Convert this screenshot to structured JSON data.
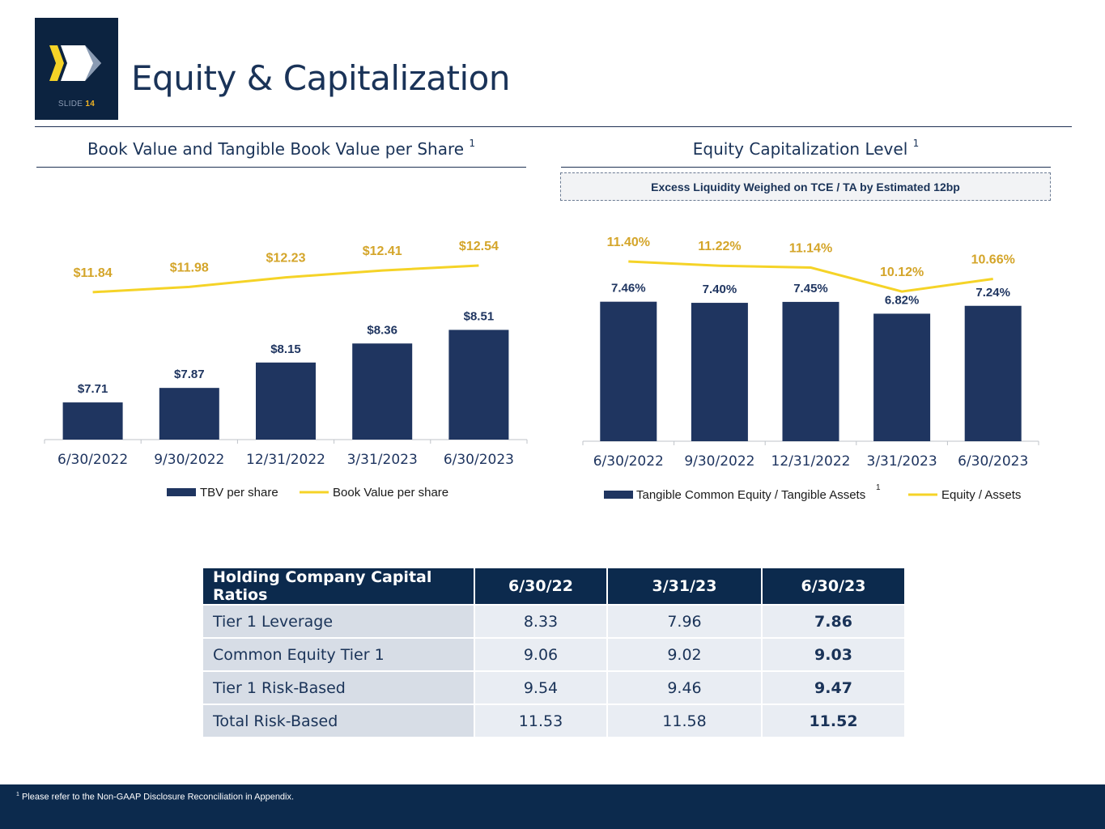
{
  "slide": {
    "label": "SLIDE",
    "number": "14",
    "title": "Equity & Capitalization"
  },
  "colors": {
    "navy": "#1f3560",
    "gold_line": "#f5d327",
    "gold_label": "#d4a52a",
    "dark": "#0c2a4d"
  },
  "left_chart": {
    "section_title": "Book Value and Tangible Book Value per Share",
    "superscript": "1",
    "chart_data": {
      "type": "bar+line",
      "categories": [
        "6/30/2022",
        "9/30/2022",
        "12/31/2022",
        "3/31/2023",
        "6/30/2023"
      ],
      "series": [
        {
          "name": "TBV per share",
          "kind": "bar",
          "values": [
            7.71,
            7.87,
            8.15,
            8.36,
            8.51
          ],
          "labels": [
            "$7.71",
            "$7.87",
            "$8.15",
            "$8.36",
            "$8.51"
          ]
        },
        {
          "name": "Book Value per share",
          "kind": "line",
          "values": [
            11.84,
            11.98,
            12.23,
            12.41,
            12.54
          ],
          "labels": [
            "$11.84",
            "$11.98",
            "$12.23",
            "$12.41",
            "$12.54"
          ]
        }
      ],
      "legend": [
        "TBV per share",
        "Book Value per share"
      ]
    }
  },
  "right_chart": {
    "section_title": "Equity Capitalization Level",
    "superscript": "1",
    "callout": "Excess Liquidity Weighed on TCE / TA by Estimated 12bp",
    "chart_data": {
      "type": "bar+line",
      "categories": [
        "6/30/2022",
        "9/30/2022",
        "12/31/2022",
        "3/31/2023",
        "6/30/2023"
      ],
      "series": [
        {
          "name": "Tangible Common Equity / Tangible Assets",
          "kind": "bar",
          "values": [
            7.46,
            7.4,
            7.45,
            6.82,
            7.24
          ],
          "labels": [
            "7.46%",
            "7.40%",
            "7.45%",
            "6.82%",
            "7.24%"
          ]
        },
        {
          "name": "Equity / Assets",
          "kind": "line",
          "values": [
            11.4,
            11.22,
            11.14,
            10.12,
            10.66
          ],
          "labels": [
            "11.40%",
            "11.22%",
            "11.14%",
            "10.12%",
            "10.66%"
          ]
        }
      ],
      "legend": [
        "Tangible Common Equity / Tangible Assets",
        "Equity / Assets"
      ],
      "legend_superscript": "1"
    }
  },
  "table": {
    "headers": [
      "Holding Company Capital Ratios",
      "6/30/22",
      "3/31/23",
      "6/30/23"
    ],
    "rows": [
      [
        "Tier 1 Leverage",
        "8.33",
        "7.96",
        "7.86"
      ],
      [
        "Common Equity Tier 1",
        "9.06",
        "9.02",
        "9.03"
      ],
      [
        "Tier 1 Risk-Based",
        "9.54",
        "9.46",
        "9.47"
      ],
      [
        "Total Risk-Based",
        "11.53",
        "11.58",
        "11.52"
      ]
    ]
  },
  "footnote": {
    "superscript": "1",
    "text": "Please refer to the Non-GAAP Disclosure Reconciliation in Appendix."
  }
}
